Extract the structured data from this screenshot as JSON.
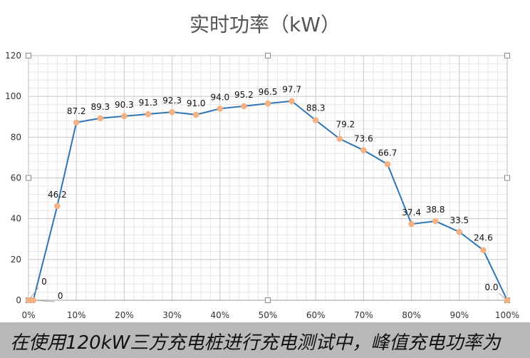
{
  "chart_data": {
    "type": "line",
    "title": "实时功率（kW）",
    "xlabel": "",
    "ylabel": "",
    "x": [
      "0%",
      "1%",
      "6%",
      "10%",
      "15%",
      "20%",
      "25%",
      "30%",
      "35%",
      "40%",
      "45%",
      "50%",
      "55%",
      "60%",
      "65%",
      "70%",
      "75%",
      "80%",
      "85%",
      "90%",
      "95%",
      "100%"
    ],
    "x_values": [
      0,
      1,
      6,
      10,
      15,
      20,
      25,
      30,
      35,
      40,
      45,
      50,
      55,
      60,
      65,
      70,
      75,
      80,
      85,
      90,
      95,
      100
    ],
    "series": [
      {
        "values": [
          0,
          0,
          46.2,
          87.2,
          89.3,
          90.3,
          91.3,
          92.3,
          91.0,
          94.0,
          95.2,
          96.5,
          97.7,
          88.3,
          79.2,
          73.6,
          66.7,
          37.4,
          38.8,
          33.5,
          24.6,
          0.0
        ]
      }
    ],
    "data_labels": [
      "0",
      "0",
      "46.2",
      "87.2",
      "89.3",
      "90.3",
      "91.3",
      "92.3",
      "91.0",
      "94.0",
      "95.2",
      "96.5",
      "97.7",
      "88.3",
      "79.2",
      "73.6",
      "66.7",
      "37.4",
      "38.8",
      "33.5",
      "24.6",
      "0.0"
    ],
    "xticks": [
      "0%",
      "10%",
      "20%",
      "30%",
      "40%",
      "50%",
      "60%",
      "70%",
      "80%",
      "90%",
      "100%"
    ],
    "yticks": [
      "0",
      "20",
      "40",
      "60",
      "80",
      "100",
      "120"
    ],
    "xlim": [
      0,
      100
    ],
    "ylim": [
      0,
      120
    ],
    "grid": true,
    "line_color": "#2e75b6",
    "marker_color": "#f4b183"
  },
  "caption": {
    "text": "在使用120kW三方充电桩进行充电测试中，峰值充电功率为"
  }
}
